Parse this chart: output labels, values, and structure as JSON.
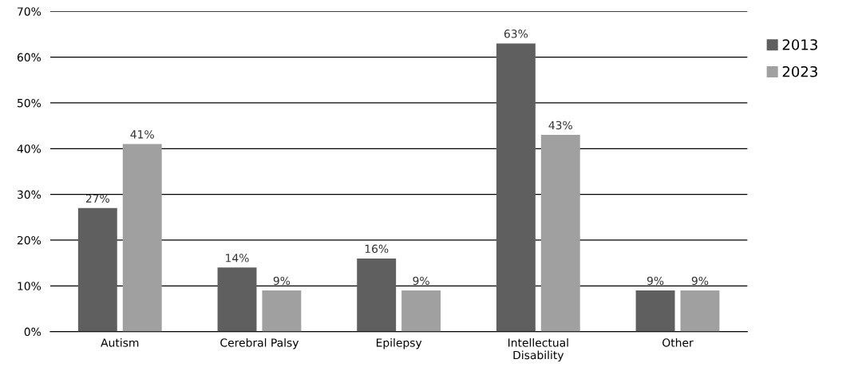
{
  "chart_data": {
    "type": "bar",
    "categories": [
      "Autism",
      "Cerebral Palsy",
      "Epilepsy",
      "Intellectual\nDisability",
      "Other"
    ],
    "series": [
      {
        "name": "2013",
        "color": "#5f5f5f",
        "values": [
          27,
          14,
          16,
          63,
          9
        ],
        "value_labels": [
          "27%",
          "14%",
          "16%",
          "63%",
          "9%"
        ]
      },
      {
        "name": "2023",
        "color": "#a0a0a0",
        "values": [
          41,
          9,
          9,
          43,
          9
        ],
        "value_labels": [
          "41%",
          "9%",
          "9%",
          "43%",
          "9%"
        ]
      }
    ],
    "ylim": [
      0,
      70
    ],
    "yticks": [
      {
        "value": 0,
        "label": "0%"
      },
      {
        "value": 10,
        "label": "10%"
      },
      {
        "value": 20,
        "label": "20%"
      },
      {
        "value": 30,
        "label": "30%"
      },
      {
        "value": 40,
        "label": "40%"
      },
      {
        "value": 50,
        "label": "50%"
      },
      {
        "value": 60,
        "label": "60%"
      },
      {
        "value": 70,
        "label": "70%"
      }
    ],
    "grid": "y",
    "legend": "right"
  }
}
